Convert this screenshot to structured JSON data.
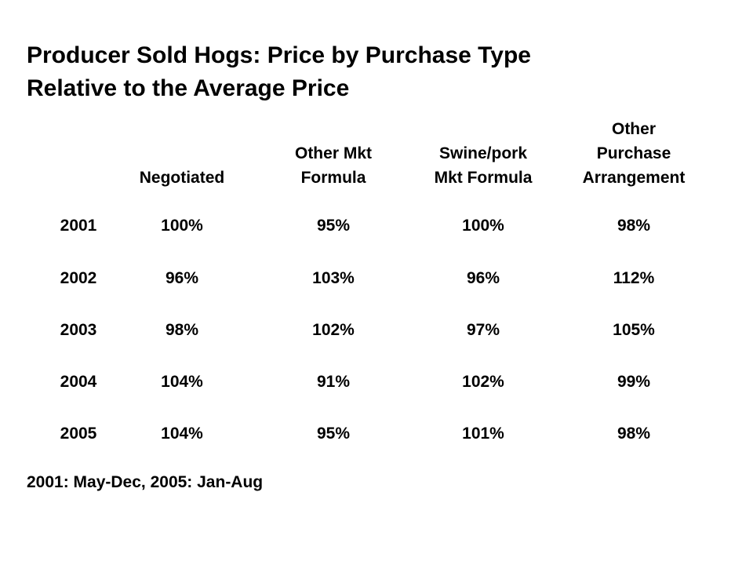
{
  "title": {
    "line1": "Producer Sold Hogs: Price by Purchase Type",
    "line2": "Relative to the Average Price"
  },
  "table": {
    "columns": [
      {
        "lines": [
          "Negotiated"
        ]
      },
      {
        "lines": [
          "Other Mkt",
          "Formula"
        ]
      },
      {
        "lines": [
          "Swine/pork",
          "Mkt Formula"
        ]
      },
      {
        "lines": [
          "Other",
          "Purchase",
          "Arrangement"
        ]
      }
    ],
    "rows": [
      {
        "year": "2001",
        "values": [
          "100%",
          "95%",
          "100%",
          "98%"
        ]
      },
      {
        "year": "2002",
        "values": [
          "96%",
          "103%",
          "96%",
          "112%"
        ]
      },
      {
        "year": "2003",
        "values": [
          "98%",
          "102%",
          "97%",
          "105%"
        ]
      },
      {
        "year": "2004",
        "values": [
          "104%",
          "91%",
          "102%",
          "99%"
        ]
      },
      {
        "year": "2005",
        "values": [
          "104%",
          "95%",
          "101%",
          "98%"
        ]
      }
    ]
  },
  "footnote": "2001: May-Dec, 2005: Jan-Aug"
}
